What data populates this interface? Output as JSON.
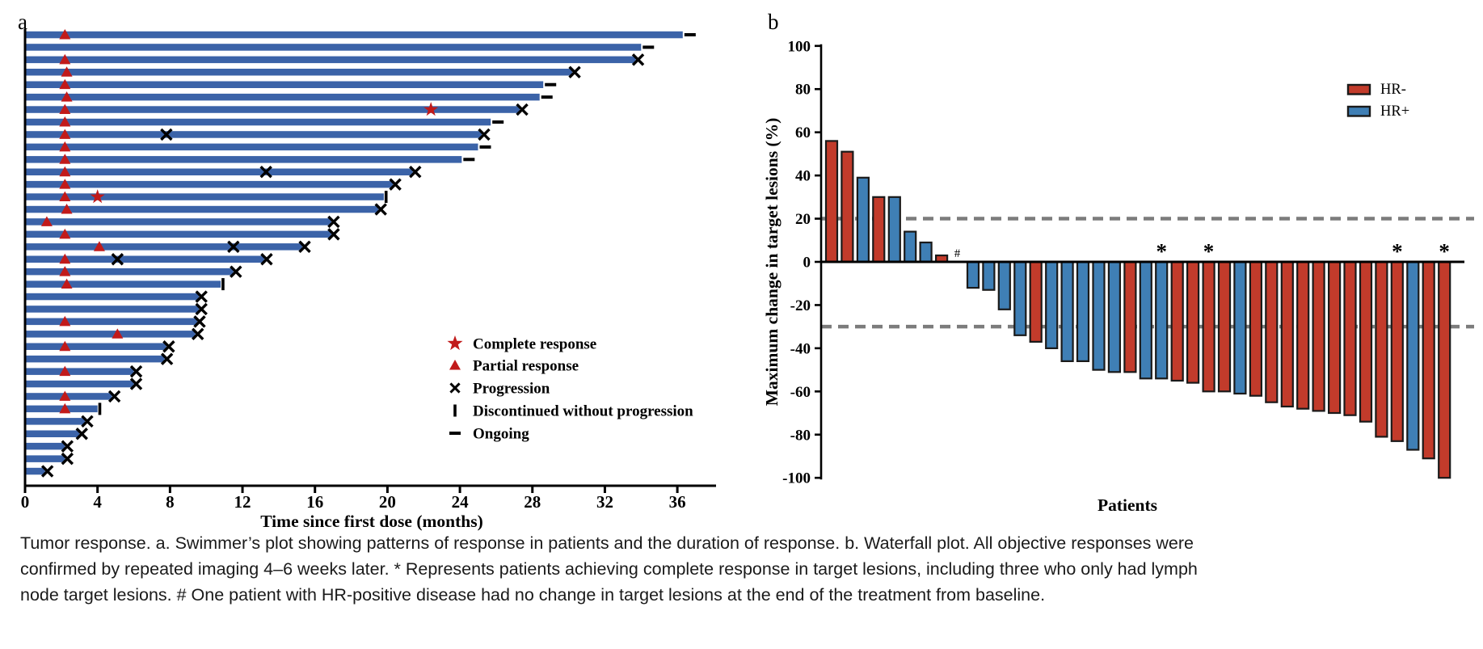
{
  "figure": {
    "panel_a_label": "a",
    "panel_b_label": "b"
  },
  "caption": {
    "lines": [
      "Tumor response. a. Swimmer’s plot showing patterns of response in patients and the duration of response. b. Waterfall plot. All objective responses were",
      "confirmed by repeated imaging 4–6 weeks later. * Represents patients achieving complete response in target lesions, including three who only had lymph",
      "node target lesions. # One patient with HR-positive disease had no change in target lesions at the end of the treatment from baseline."
    ]
  },
  "chart_data": [
    {
      "type": "swimmer",
      "title": "",
      "xlabel": "Time since first dose (months)",
      "x_ticks": [
        0,
        4,
        8,
        12,
        16,
        20,
        24,
        28,
        32,
        36
      ],
      "xlim": [
        0,
        38
      ],
      "grid": false,
      "bar_color": "#3b63a8",
      "marker_red": "#c11a1a",
      "marker_black": "#000000",
      "legend_position": "lower-right-inside",
      "legend": [
        {
          "marker": "star",
          "label": "Complete response"
        },
        {
          "marker": "triangle",
          "label": "Partial response"
        },
        {
          "marker": "cross",
          "label": "Progression"
        },
        {
          "marker": "vbar",
          "label": "Discontinued without progression"
        },
        {
          "marker": "dash",
          "label": "Ongoing"
        }
      ],
      "bars": [
        {
          "duration": 36.3,
          "partial_response_at": 2.2,
          "complete_response_at": null,
          "progression_at": [],
          "end": "ongoing"
        },
        {
          "duration": 34.0,
          "partial_response_at": null,
          "complete_response_at": null,
          "progression_at": [],
          "end": "ongoing"
        },
        {
          "duration": 33.7,
          "partial_response_at": 2.2,
          "complete_response_at": null,
          "progression_at": [],
          "end": "progression"
        },
        {
          "duration": 30.2,
          "partial_response_at": 2.3,
          "complete_response_at": null,
          "progression_at": [],
          "end": "progression"
        },
        {
          "duration": 28.6,
          "partial_response_at": 2.2,
          "complete_response_at": null,
          "progression_at": [],
          "end": "ongoing"
        },
        {
          "duration": 28.4,
          "partial_response_at": 2.3,
          "complete_response_at": null,
          "progression_at": [],
          "end": "ongoing"
        },
        {
          "duration": 27.3,
          "partial_response_at": 2.2,
          "complete_response_at": 22.4,
          "progression_at": [],
          "end": "progression"
        },
        {
          "duration": 25.7,
          "partial_response_at": 2.2,
          "complete_response_at": null,
          "progression_at": [],
          "end": "ongoing"
        },
        {
          "duration": 25.2,
          "partial_response_at": 2.2,
          "complete_response_at": null,
          "progression_at": [
            7.8
          ],
          "end": "progression"
        },
        {
          "duration": 25.0,
          "partial_response_at": 2.2,
          "complete_response_at": null,
          "progression_at": [],
          "end": "ongoing"
        },
        {
          "duration": 24.1,
          "partial_response_at": 2.2,
          "complete_response_at": null,
          "progression_at": [],
          "end": "ongoing"
        },
        {
          "duration": 21.4,
          "partial_response_at": 2.2,
          "complete_response_at": null,
          "progression_at": [
            13.3
          ],
          "end": "progression"
        },
        {
          "duration": 20.3,
          "partial_response_at": 2.2,
          "complete_response_at": null,
          "progression_at": [],
          "end": "progression"
        },
        {
          "duration": 19.8,
          "partial_response_at": 2.2,
          "complete_response_at": 4.0,
          "progression_at": [],
          "end": "discontinued"
        },
        {
          "duration": 19.5,
          "partial_response_at": 2.3,
          "complete_response_at": null,
          "progression_at": [],
          "end": "progression"
        },
        {
          "duration": 16.9,
          "partial_response_at": 1.2,
          "complete_response_at": null,
          "progression_at": [],
          "end": "progression"
        },
        {
          "duration": 16.9,
          "partial_response_at": 2.2,
          "complete_response_at": null,
          "progression_at": [],
          "end": "progression"
        },
        {
          "duration": 15.3,
          "partial_response_at": 4.1,
          "complete_response_at": null,
          "progression_at": [
            11.5
          ],
          "end": "progression"
        },
        {
          "duration": 13.2,
          "partial_response_at": 2.2,
          "complete_response_at": null,
          "progression_at": [
            5.1
          ],
          "end": "progression"
        },
        {
          "duration": 11.5,
          "partial_response_at": 2.2,
          "complete_response_at": null,
          "progression_at": [],
          "end": "progression"
        },
        {
          "duration": 10.8,
          "partial_response_at": 2.3,
          "complete_response_at": null,
          "progression_at": [],
          "end": "discontinued"
        },
        {
          "duration": 9.6,
          "partial_response_at": null,
          "complete_response_at": null,
          "progression_at": [],
          "end": "progression"
        },
        {
          "duration": 9.6,
          "partial_response_at": null,
          "complete_response_at": null,
          "progression_at": [],
          "end": "progression"
        },
        {
          "duration": 9.5,
          "partial_response_at": 2.2,
          "complete_response_at": null,
          "progression_at": [],
          "end": "progression"
        },
        {
          "duration": 9.4,
          "partial_response_at": 5.1,
          "complete_response_at": null,
          "progression_at": [],
          "end": "progression"
        },
        {
          "duration": 7.8,
          "partial_response_at": 2.2,
          "complete_response_at": null,
          "progression_at": [],
          "end": "progression"
        },
        {
          "duration": 7.7,
          "partial_response_at": null,
          "complete_response_at": null,
          "progression_at": [],
          "end": "progression"
        },
        {
          "duration": 6.0,
          "partial_response_at": 2.2,
          "complete_response_at": null,
          "progression_at": [],
          "end": "progression"
        },
        {
          "duration": 6.0,
          "partial_response_at": null,
          "complete_response_at": null,
          "progression_at": [],
          "end": "progression"
        },
        {
          "duration": 4.8,
          "partial_response_at": 2.2,
          "complete_response_at": null,
          "progression_at": [],
          "end": "progression"
        },
        {
          "duration": 4.0,
          "partial_response_at": 2.2,
          "complete_response_at": null,
          "progression_at": [],
          "end": "discontinued"
        },
        {
          "duration": 3.3,
          "partial_response_at": null,
          "complete_response_at": null,
          "progression_at": [],
          "end": "progression"
        },
        {
          "duration": 3.0,
          "partial_response_at": null,
          "complete_response_at": null,
          "progression_at": [],
          "end": "progression"
        },
        {
          "duration": 2.2,
          "partial_response_at": null,
          "complete_response_at": null,
          "progression_at": [],
          "end": "progression"
        },
        {
          "duration": 2.2,
          "partial_response_at": null,
          "complete_response_at": null,
          "progression_at": [],
          "end": "progression"
        },
        {
          "duration": 1.1,
          "partial_response_at": null,
          "complete_response_at": null,
          "progression_at": [],
          "end": "progression"
        }
      ]
    },
    {
      "type": "waterfall",
      "title": "",
      "ylabel": "Maximum change in target lesions (%)",
      "xlabel": "Patients",
      "ylim": [
        -100,
        100
      ],
      "y_ticks": [
        100,
        80,
        60,
        40,
        20,
        0,
        -20,
        -40,
        -60,
        -80,
        -100
      ],
      "reference_lines": [
        20,
        -30
      ],
      "reference_line_color": "#7c7c7c",
      "grid": false,
      "legend_position": "upper-right-inside",
      "legend": [
        {
          "label": "HR-",
          "color": "#c23b2b"
        },
        {
          "label": "HR+",
          "color": "#3f7fb5"
        }
      ],
      "groups": {
        "HR-": "#c23b2b",
        "HR+": "#3f7fb5"
      },
      "patients": [
        {
          "change": 56,
          "group": "HR-"
        },
        {
          "change": 51,
          "group": "HR-"
        },
        {
          "change": 39,
          "group": "HR+"
        },
        {
          "change": 30,
          "group": "HR-"
        },
        {
          "change": 30,
          "group": "HR+"
        },
        {
          "change": 14,
          "group": "HR+"
        },
        {
          "change": 9,
          "group": "HR+"
        },
        {
          "change": 3,
          "group": "HR-"
        },
        {
          "change": 0,
          "group": "HR+",
          "annotation": "#"
        },
        {
          "change": -12,
          "group": "HR+"
        },
        {
          "change": -13,
          "group": "HR+"
        },
        {
          "change": -22,
          "group": "HR+"
        },
        {
          "change": -34,
          "group": "HR+"
        },
        {
          "change": -37,
          "group": "HR-"
        },
        {
          "change": -40,
          "group": "HR+"
        },
        {
          "change": -46,
          "group": "HR+"
        },
        {
          "change": -46,
          "group": "HR+"
        },
        {
          "change": -50,
          "group": "HR+"
        },
        {
          "change": -51,
          "group": "HR+"
        },
        {
          "change": -51,
          "group": "HR-"
        },
        {
          "change": -54,
          "group": "HR+"
        },
        {
          "change": -54,
          "group": "HR+",
          "annotation": "*"
        },
        {
          "change": -55,
          "group": "HR-"
        },
        {
          "change": -56,
          "group": "HR-"
        },
        {
          "change": -60,
          "group": "HR-",
          "annotation": "*"
        },
        {
          "change": -60,
          "group": "HR-"
        },
        {
          "change": -61,
          "group": "HR+"
        },
        {
          "change": -62,
          "group": "HR-"
        },
        {
          "change": -65,
          "group": "HR-"
        },
        {
          "change": -67,
          "group": "HR-"
        },
        {
          "change": -68,
          "group": "HR-"
        },
        {
          "change": -69,
          "group": "HR-"
        },
        {
          "change": -70,
          "group": "HR-"
        },
        {
          "change": -71,
          "group": "HR-"
        },
        {
          "change": -74,
          "group": "HR-"
        },
        {
          "change": -81,
          "group": "HR-"
        },
        {
          "change": -83,
          "group": "HR-",
          "annotation": "*"
        },
        {
          "change": -87,
          "group": "HR+"
        },
        {
          "change": -91,
          "group": "HR-"
        },
        {
          "change": -100,
          "group": "HR-",
          "annotation": "*"
        }
      ]
    }
  ]
}
